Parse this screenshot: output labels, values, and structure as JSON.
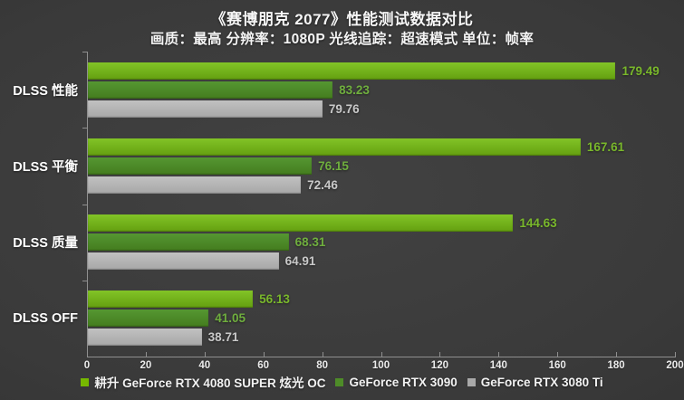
{
  "title": "《赛博朋克 2077》性能测试数据对比",
  "subtitle": "画质：最高 分辨率：1080P 光线追踪：超速模式  单位：帧率",
  "colors": {
    "background_center": "#424242",
    "background_edge": "#2b2b2b",
    "axis": "#8f8f8f",
    "tick_label": "#ececec",
    "category_label": "#ffffff",
    "series": [
      {
        "bar_top": "#82c427",
        "bar_bottom": "#649f10",
        "swatch": "#76b900",
        "value_label": "#79b72b"
      },
      {
        "bar_top": "#559732",
        "bar_bottom": "#447c1e",
        "swatch": "#4e8c28",
        "value_label": "#6fae3e"
      },
      {
        "bar_top": "#c1c1c1",
        "bar_bottom": "#a7a7a7",
        "swatch": "#a9a9a9",
        "value_label": "#c9c9c9"
      }
    ]
  },
  "chart_data": {
    "type": "bar",
    "orientation": "horizontal",
    "title": "《赛博朋克 2077》性能测试数据对比",
    "subtitle": "画质：最高 分辨率：1080P 光线追踪：超速模式  单位：帧率",
    "unit": "帧率 (FPS)",
    "categories": [
      "DLSS 性能",
      "DLSS 平衡",
      "DLSS 质量",
      "DLSS OFF"
    ],
    "series": [
      {
        "name": "耕升 GeForce RTX 4080 SUPER 炫光 OC",
        "values": [
          179.49,
          167.61,
          144.63,
          56.13
        ]
      },
      {
        "name": "GeForce RTX 3090",
        "values": [
          83.23,
          76.15,
          68.31,
          41.05
        ]
      },
      {
        "name": "GeForce RTX 3080 Ti",
        "values": [
          79.76,
          72.46,
          64.91,
          38.71
        ]
      }
    ],
    "xlim": [
      0,
      200
    ],
    "x_ticks": [
      0,
      20,
      40,
      60,
      80,
      100,
      120,
      140,
      160,
      180,
      200
    ],
    "grid": false,
    "legend_position": "bottom",
    "value_labels": true
  }
}
